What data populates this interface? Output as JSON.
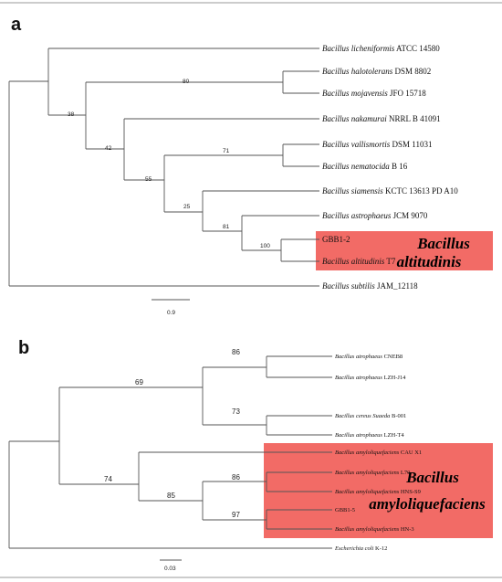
{
  "colors": {
    "highlight": "#f26b66",
    "branch": "#555555",
    "text": "#111111"
  },
  "panel_a": {
    "label": "a",
    "support_values": [
      "38",
      "80",
      "42",
      "55",
      "71",
      "25",
      "81",
      "100"
    ],
    "taxa": [
      {
        "genus": "Bacillus",
        "species": "licheniformis",
        "strain": "ATCC 14580",
        "italic": true
      },
      {
        "genus": "Bacillus",
        "species": "halotolerans",
        "strain": "DSM 8802",
        "italic": true
      },
      {
        "genus": "Bacillus",
        "species": "mojavensis",
        "strain": "JFO 15718",
        "italic": true
      },
      {
        "genus": "Bacillus",
        "species": "nakamurai",
        "strain": "NRRL B 41091",
        "italic": true
      },
      {
        "genus": "Bacillus",
        "species": "vallismortis",
        "strain": "DSM 11031",
        "italic": true
      },
      {
        "genus": "Bacillus",
        "species": "nematocida",
        "strain": "B 16",
        "italic": true
      },
      {
        "genus": "Bacillus",
        "species": "siamensis",
        "strain": "KCTC 13613 PD A10",
        "italic": true
      },
      {
        "genus": "Bacillus",
        "species": "astrophaeus",
        "strain": "JCM 9070",
        "italic": true
      },
      {
        "genus": "",
        "species": "",
        "strain": "GBB1-2",
        "italic": false
      },
      {
        "genus": "Bacillus",
        "species": "altitudinis",
        "strain": "T7",
        "italic": true
      },
      {
        "genus": "Bacillus",
        "species": "subtilis",
        "strain": "JAM_12118",
        "italic": true
      }
    ],
    "highlight_label_line1": "Bacillus",
    "highlight_label_line2": "altitudinis",
    "scale_label": "0.9"
  },
  "panel_b": {
    "label": "b",
    "support_values": [
      "69",
      "86",
      "73",
      "74",
      "86",
      "85",
      "97"
    ],
    "taxa": [
      {
        "genus": "Bacillus",
        "species": "atrophaeus",
        "strain": "CNEB8",
        "italic": true
      },
      {
        "genus": "Bacillus",
        "species": "atrophaeus",
        "strain": "LZH-J14",
        "italic": true
      },
      {
        "genus": "Bacillus",
        "species": "cereus Suaeda",
        "strain": "B-001",
        "italic": true
      },
      {
        "genus": "Bacillus",
        "species": "atrophaeus",
        "strain": "LZH-T4",
        "italic": true
      },
      {
        "genus": "Bacillus",
        "species": "amyloliquefaciens",
        "strain": "CAU X1",
        "italic": true
      },
      {
        "genus": "Bacillus",
        "species": "amyloliquefaciens",
        "strain": "L70",
        "italic": true
      },
      {
        "genus": "Bacillus",
        "species": "amyloliquefaciens",
        "strain": "HNS-S9",
        "italic": true
      },
      {
        "genus": "",
        "species": "",
        "strain": "GBB1-5",
        "italic": false
      },
      {
        "genus": "Bacillus",
        "species": "amyloliquefaciens",
        "strain": "HN-3",
        "italic": true
      },
      {
        "genus": "Escherichia",
        "species": "coli",
        "strain": "K-12",
        "italic": true
      }
    ],
    "highlight_label_line1": "Bacillus",
    "highlight_label_line2": "amyloliquefaciens",
    "scale_label": "0.03"
  }
}
